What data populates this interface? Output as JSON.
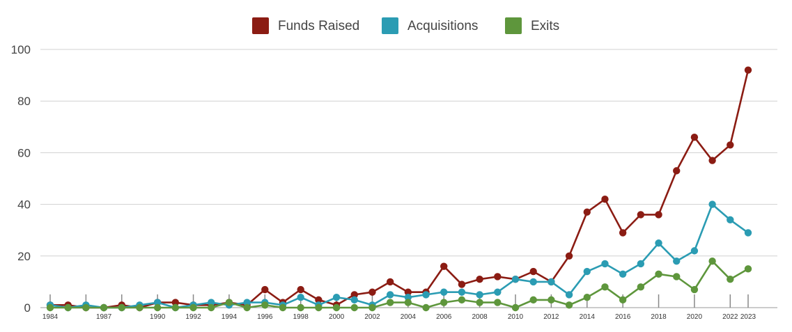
{
  "chart_data": {
    "type": "line",
    "x": [
      1984,
      1985,
      1986,
      1987,
      1988,
      1989,
      1990,
      1991,
      1992,
      1993,
      1994,
      1995,
      1996,
      1997,
      1998,
      1999,
      2000,
      2001,
      2002,
      2003,
      2004,
      2005,
      2006,
      2007,
      2008,
      2009,
      2010,
      2011,
      2012,
      2013,
      2014,
      2015,
      2016,
      2017,
      2018,
      2019,
      2020,
      2021,
      2022,
      2023
    ],
    "x_tick_labels": [
      "1984",
      "1987",
      "1990",
      "1992",
      "1994",
      "1996",
      "1998",
      "2000",
      "2002",
      "2004",
      "2006",
      "2008",
      "2010",
      "2012",
      "2014",
      "2016",
      "2018",
      "2020",
      "2022",
      "2023"
    ],
    "y_ticks": [
      0,
      20,
      40,
      60,
      80,
      100
    ],
    "ylim": [
      0,
      100
    ],
    "grid": true,
    "legend_position": "top-center",
    "series": [
      {
        "name": "Funds Raised",
        "color": "#8b1c13",
        "values": [
          1,
          1,
          0,
          0,
          1,
          0,
          2,
          2,
          1,
          1,
          2,
          1,
          7,
          2,
          7,
          3,
          1,
          5,
          6,
          10,
          6,
          6,
          16,
          9,
          11,
          12,
          11,
          14,
          10,
          20,
          37,
          42,
          29,
          36,
          36,
          53,
          66,
          57,
          63,
          92
        ]
      },
      {
        "name": "Acquisitions",
        "color": "#2b9cb3",
        "values": [
          1,
          0,
          1,
          0,
          0,
          1,
          2,
          0,
          1,
          2,
          1,
          2,
          2,
          1,
          4,
          1,
          4,
          3,
          1,
          5,
          4,
          5,
          6,
          6,
          5,
          6,
          11,
          10,
          10,
          5,
          14,
          17,
          13,
          17,
          25,
          18,
          22,
          40,
          34,
          29
        ]
      },
      {
        "name": "Exits",
        "color": "#5e963c",
        "values": [
          0,
          0,
          0,
          0,
          0,
          0,
          0,
          0,
          0,
          0,
          2,
          0,
          1,
          0,
          0,
          0,
          0,
          0,
          0,
          2,
          2,
          0,
          2,
          3,
          2,
          2,
          0,
          3,
          3,
          1,
          4,
          8,
          3,
          8,
          13,
          12,
          7,
          18,
          11,
          15
        ]
      }
    ]
  }
}
